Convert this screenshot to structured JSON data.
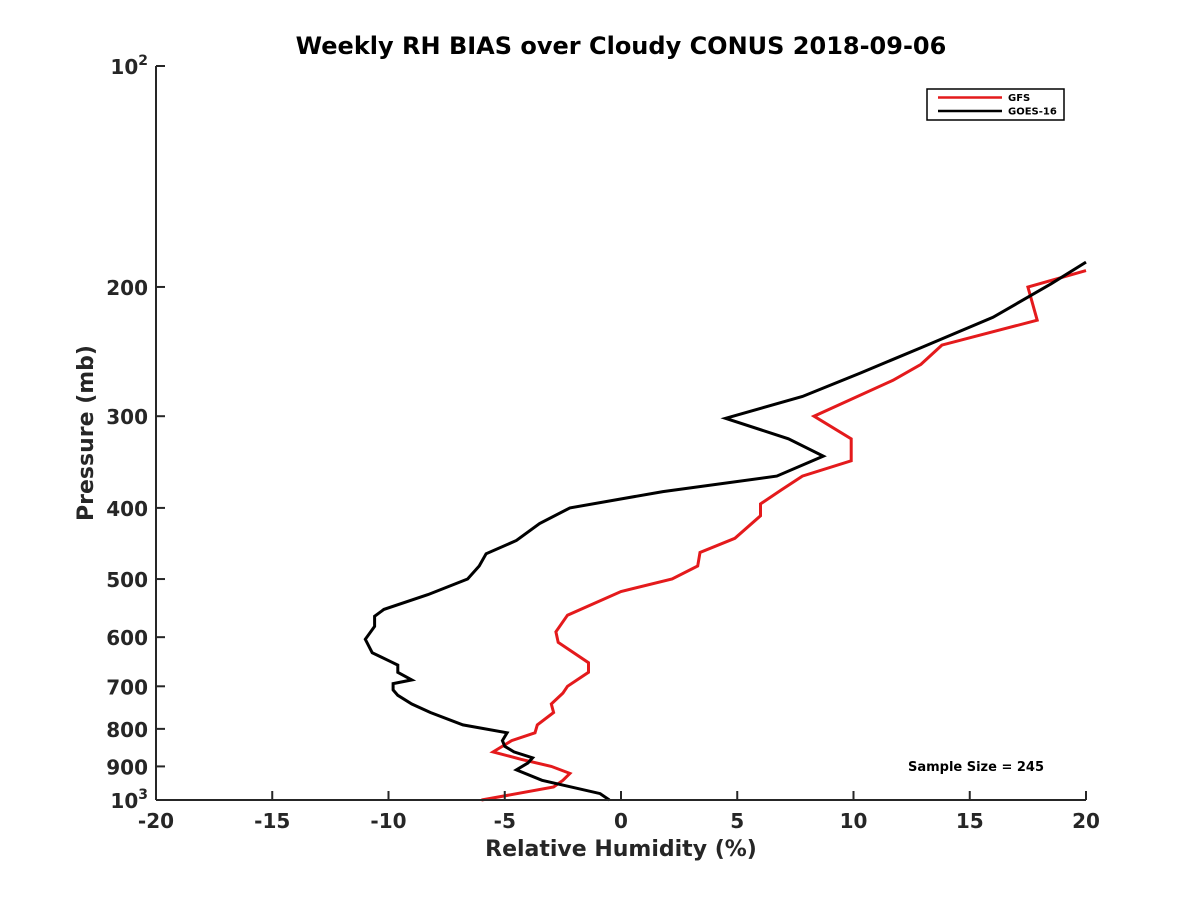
{
  "chart_data": {
    "type": "line",
    "title": "Weekly RH BIAS over Cloudy CONUS 2018-09-06",
    "xlabel": "Relative Humidity (%)",
    "ylabel": "Pressure (mb)",
    "xlim": [
      -20,
      20
    ],
    "ylim": [
      100,
      1000
    ],
    "y_scale": "log",
    "y_reversed": true,
    "grid": false,
    "legend_position": "top-right",
    "x_ticks": [
      -20,
      -15,
      -10,
      -5,
      0,
      5,
      10,
      15,
      20
    ],
    "x_tick_labels": [
      "-20",
      "-15",
      "-10",
      "-5",
      "0",
      "5",
      "10",
      "15",
      "20"
    ],
    "y_ticks": [
      {
        "value": 100,
        "base": "10",
        "sup": "2"
      },
      {
        "value": 200,
        "base": "200",
        "sup": ""
      },
      {
        "value": 300,
        "base": "300",
        "sup": ""
      },
      {
        "value": 400,
        "base": "400",
        "sup": ""
      },
      {
        "value": 500,
        "base": "500",
        "sup": ""
      },
      {
        "value": 600,
        "base": "600",
        "sup": ""
      },
      {
        "value": 700,
        "base": "700",
        "sup": ""
      },
      {
        "value": 800,
        "base": "800",
        "sup": ""
      },
      {
        "value": 900,
        "base": "900",
        "sup": ""
      },
      {
        "value": 1000,
        "base": "10",
        "sup": "3"
      }
    ],
    "series": [
      {
        "name": "GFS",
        "color": "#e41a1c",
        "x": [
          20.0,
          17.5,
          17.9,
          13.8,
          12.9,
          11.7,
          8.3,
          9.9,
          9.9,
          7.8,
          6.9,
          6.0,
          6.0,
          4.9,
          3.4,
          3.3,
          2.2,
          0.0,
          -2.3,
          -2.8,
          -2.7,
          -1.4,
          -1.4,
          -2.3,
          -2.5,
          -3.0,
          -2.9,
          -3.6,
          -3.7,
          -4.7,
          -5.5,
          -4.3,
          -3.0,
          -2.2,
          -2.5,
          -2.9,
          -6.0
        ],
        "y": [
          190,
          200,
          222,
          240,
          255,
          268,
          300,
          322,
          345,
          362,
          378,
          395,
          410,
          440,
          460,
          480,
          500,
          520,
          560,
          590,
          610,
          650,
          670,
          700,
          715,
          740,
          760,
          790,
          810,
          830,
          860,
          880,
          900,
          920,
          940,
          960,
          1000
        ]
      },
      {
        "name": "GOES-16",
        "color": "#000000",
        "x": [
          20.0,
          18.5,
          16.0,
          12.9,
          10.3,
          7.8,
          4.5,
          7.2,
          8.7,
          6.7,
          1.8,
          -2.2,
          -3.5,
          -4.5,
          -5.8,
          -6.1,
          -6.6,
          -8.3,
          -10.2,
          -10.6,
          -10.6,
          -11.0,
          -10.7,
          -9.9,
          -9.6,
          -9.6,
          -9.0,
          -9.8,
          -9.8,
          -9.6,
          -9.0,
          -8.2,
          -6.8,
          -4.9,
          -5.1,
          -5.0,
          -4.6,
          -3.8,
          -4.0,
          -4.5,
          -3.4,
          -0.9,
          -0.5
        ],
        "y": [
          185,
          198,
          220,
          242,
          262,
          282,
          302,
          322,
          340,
          362,
          380,
          400,
          420,
          443,
          462,
          480,
          500,
          525,
          550,
          562,
          580,
          604,
          630,
          648,
          655,
          670,
          686,
          694,
          708,
          720,
          740,
          760,
          790,
          810,
          830,
          845,
          860,
          876,
          890,
          910,
          940,
          980,
          1000
        ]
      }
    ],
    "annotations": [
      {
        "text": "Sample Size = 245"
      }
    ]
  }
}
